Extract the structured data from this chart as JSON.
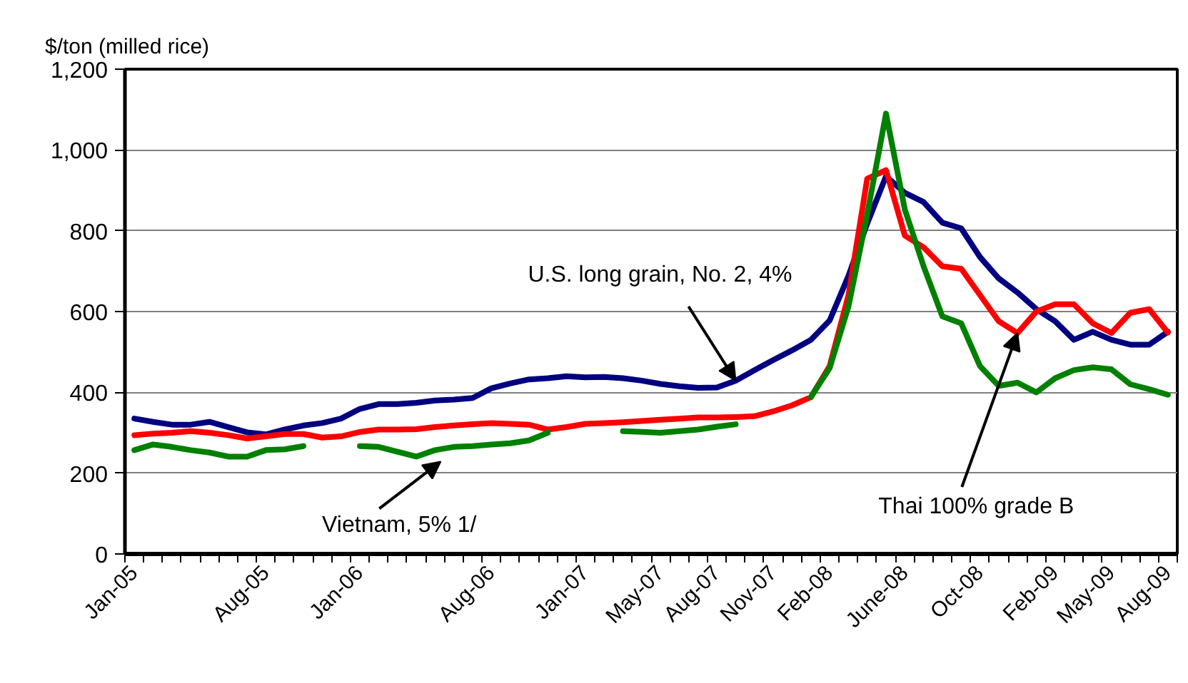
{
  "chart_data": {
    "type": "line",
    "ylabel": "$/ton (milled rice)",
    "categories": [
      "Jan-05",
      null,
      null,
      null,
      null,
      null,
      null,
      "Aug-05",
      null,
      null,
      null,
      null,
      "Jan-06",
      null,
      null,
      null,
      null,
      null,
      null,
      "Aug-06",
      null,
      null,
      null,
      null,
      "Jan-07",
      null,
      null,
      null,
      "May-07",
      null,
      null,
      "Aug-07",
      null,
      null,
      "Nov-07",
      null,
      null,
      "Feb-08",
      null,
      null,
      null,
      "June-08",
      null,
      null,
      null,
      "Oct-08",
      null,
      null,
      null,
      "Feb-09",
      null,
      null,
      "May-09",
      null,
      null,
      "Aug-09"
    ],
    "series": [
      {
        "name": "U.S. long grain, No. 2, 4%",
        "color": "#000080",
        "values": [
          335,
          327,
          320,
          320,
          327,
          314,
          301,
          296,
          308,
          318,
          324,
          335,
          359,
          371,
          371,
          374,
          380,
          382,
          386,
          410,
          422,
          432,
          435,
          440,
          437,
          438,
          435,
          429,
          421,
          415,
          411,
          412,
          429,
          455,
          480,
          504,
          530,
          578,
          688,
          818,
          935,
          894,
          871,
          820,
          806,
          735,
          682,
          647,
          606,
          576,
          530,
          550,
          530,
          518,
          518,
          550
        ]
      },
      {
        "name": "Thai 100% grade B",
        "color": "#ff0000",
        "values": [
          294,
          298,
          300,
          304,
          300,
          294,
          286,
          291,
          297,
          297,
          288,
          291,
          302,
          308,
          308,
          309,
          314,
          318,
          321,
          324,
          322,
          320,
          308,
          314,
          322,
          324,
          326,
          329,
          332,
          335,
          338,
          338,
          339,
          341,
          353,
          368,
          388,
          465,
          640,
          929,
          950,
          788,
          759,
          712,
          706,
          641,
          576,
          547,
          600,
          618,
          618,
          571,
          547,
          597,
          606,
          548
        ]
      },
      {
        "name": "Vietnam, 5% 1/",
        "color": "#008000",
        "values": [
          257,
          271,
          265,
          257,
          251,
          241,
          241,
          257,
          259,
          267,
          null,
          null,
          267,
          265,
          253,
          241,
          257,
          265,
          267,
          271,
          274,
          281,
          300,
          null,
          null,
          null,
          304,
          302,
          300,
          304,
          308,
          315,
          321,
          null,
          null,
          null,
          388,
          460,
          612,
          841,
          1090,
          853,
          712,
          588,
          571,
          465,
          416,
          424,
          400,
          435,
          455,
          462,
          457,
          420,
          408,
          394
        ]
      }
    ],
    "ylim": [
      0,
      1200
    ],
    "yticks": [
      0,
      200,
      400,
      600,
      800,
      {
        "value": 1000,
        "label": "1,000"
      },
      {
        "value": 1200,
        "label": "1,200"
      }
    ],
    "grid": "y"
  }
}
